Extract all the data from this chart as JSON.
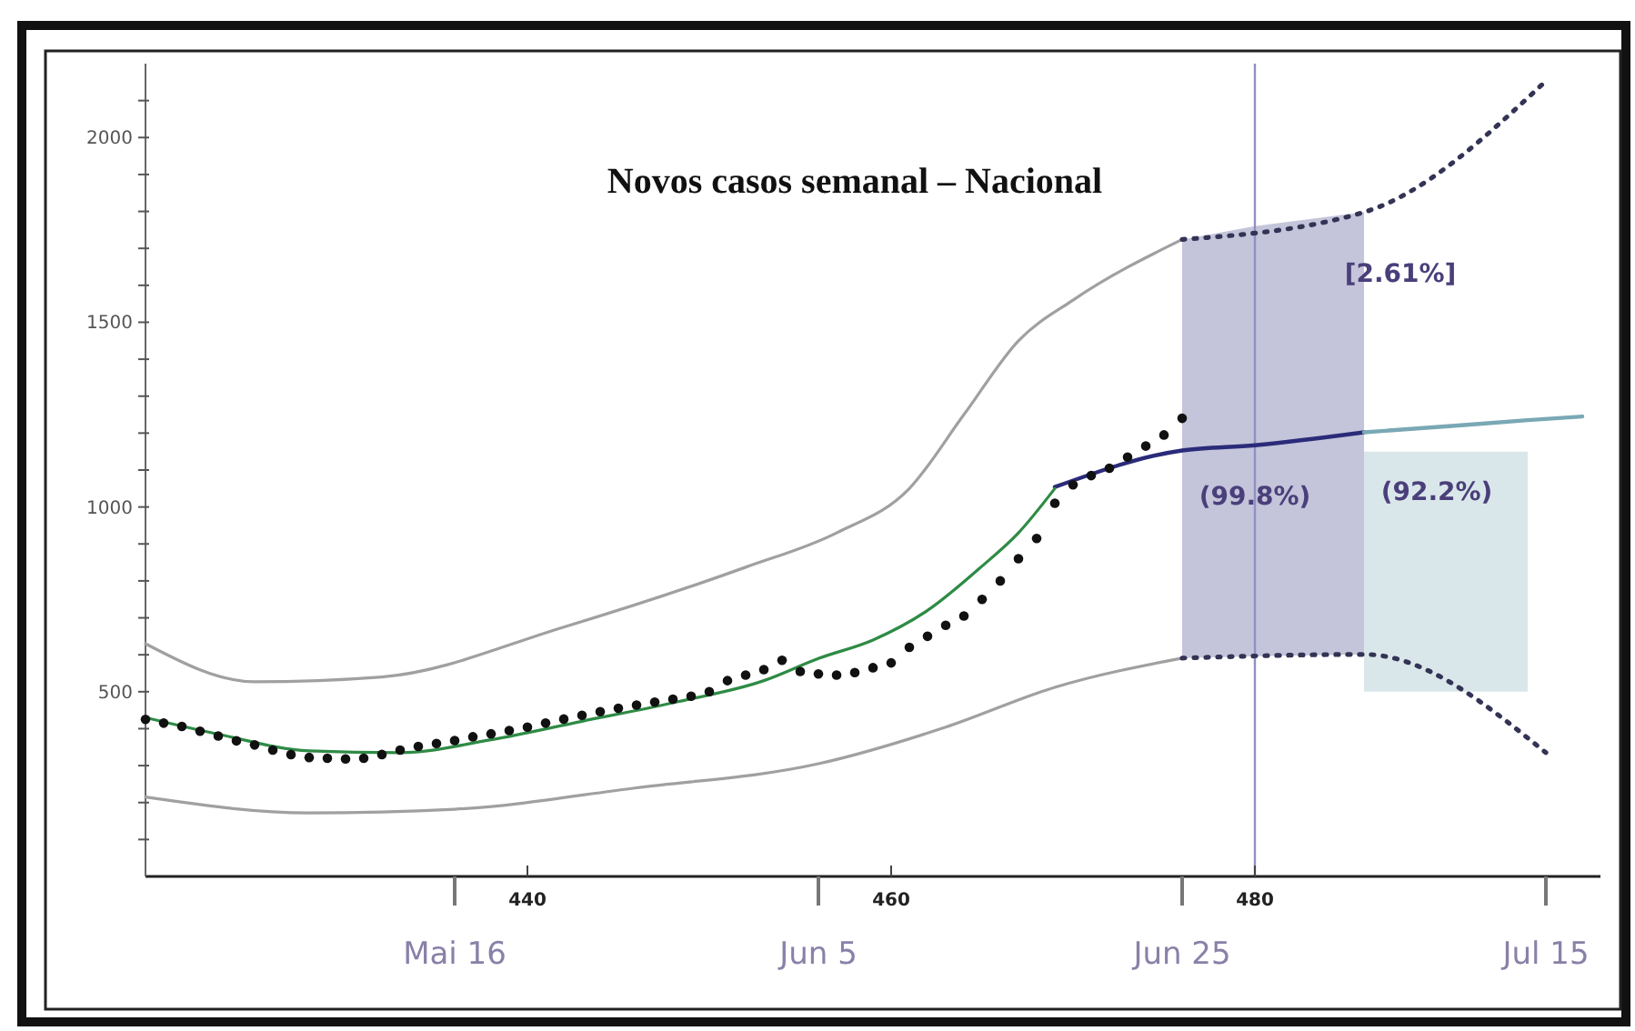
{
  "chart_data": {
    "type": "line",
    "title": "Novos casos semanal – Nacional",
    "xlim": [
      "--04-29",
      "--07-18"
    ],
    "xticks": [
      {
        "value": "--05-16",
        "label": "Mai 16"
      },
      {
        "value": "--06-05",
        "label": "Jun 5"
      },
      {
        "value": "--06-25",
        "label": "Jun 25"
      },
      {
        "value": "--07-15",
        "label": "Jul 15"
      }
    ],
    "x2lim": [
      419,
      499
    ],
    "x2ticks": [
      440,
      460,
      480
    ],
    "ylim": [
      0,
      2200
    ],
    "yticks": [
      {
        "value": 100,
        "label": null
      },
      {
        "value": 200,
        "label": null
      },
      {
        "value": 300,
        "label": null
      },
      {
        "value": 400,
        "label": null
      },
      500,
      {
        "value": 600,
        "label": null
      },
      {
        "value": 700,
        "label": null
      },
      {
        "value": 800,
        "label": null
      },
      {
        "value": 900,
        "label": null
      },
      1000,
      {
        "value": 1100,
        "label": null
      },
      {
        "value": 1200,
        "label": null
      },
      {
        "value": 1300,
        "label": null
      },
      {
        "value": 1400,
        "label": null
      },
      1500,
      {
        "value": 1600,
        "label": null
      },
      {
        "value": 1700,
        "label": null
      },
      {
        "value": 1800,
        "label": null
      },
      {
        "value": 1900,
        "label": null
      },
      2000,
      {
        "value": 2100,
        "label": null
      }
    ],
    "ref_lines": [
      {
        "axis": "x",
        "value": "--06-29",
        "color": "#9090c4"
      }
    ],
    "annotations": [
      "[2.61%]",
      {
        "text": "(99.8%)",
        "x": "--06-29",
        "y": 1030
      },
      "(92.2%)"
    ],
    "series": [
      {
        "color": "#a0a0a0",
        "x": [
          "--04-29",
          "--05-05",
          "--05-12",
          "--05-22",
          "--06-01",
          "--06-06",
          "--06-10",
          "--06-13",
          "--06-16",
          "--06-19",
          "--06-25"
        ],
        "values": [
          630,
          527,
          540,
          675,
          837,
          930,
          1050,
          1250,
          1450,
          1560,
          1724
        ]
      },
      {
        "color": "#a0a0a0",
        "x": [
          "--04-29",
          "--05-08",
          "--05-16",
          "--05-26",
          "--06-05",
          "--06-12",
          "--06-18",
          "--06-25"
        ],
        "values": [
          215,
          172,
          182,
          240,
          305,
          404,
          512,
          591
        ]
      },
      {
        "color": "#2b2b7a",
        "x": [
          "--06-18",
          "--06-25",
          "--06-29",
          "--07-05"
        ],
        "values": [
          1054,
          1153,
          1167,
          1202
        ],
        "lower": [
          null,
          591,
          596,
          601
        ],
        "upper": [
          null,
          1724,
          1760,
          1798
        ]
      },
      {
        "color": "#7aa8b5",
        "x": [
          "--07-05",
          "--07-10",
          "--07-14",
          "--07-17"
        ],
        "values": [
          1202,
          1220,
          1235,
          1245
        ],
        "lower": [
          500,
          500,
          500,
          null
        ],
        "upper": [
          1150,
          1150,
          1150,
          null
        ]
      },
      {
        "color": "#333355",
        "line_style": "dotted",
        "x": [
          "--06-25",
          "--07-05",
          "--07-15"
        ],
        "values": [
          1724,
          1798,
          2153
        ]
      },
      {
        "color": "#333355",
        "line_style": "dotted",
        "x": [
          "--06-25",
          "--07-05",
          "--07-15"
        ],
        "values": [
          591,
          601,
          335
        ]
      },
      {
        "color": "#2e8b45",
        "x": [
          "--04-29",
          "--05-03",
          "--05-08",
          "--05-13",
          "--05-18",
          "--05-23",
          "--05-28",
          "--06-02",
          "--06-05",
          "--06-08",
          "--06-11",
          "--06-14",
          "--06-16",
          "--06-18"
        ],
        "values": [
          430,
          385,
          340,
          335,
          370,
          420,
          470,
          530,
          590,
          640,
          720,
          840,
          930,
          1050
        ]
      },
      {
        "type": "scatter",
        "marker": "circle",
        "color": "#111111",
        "x": [
          "--04-29",
          "--04-30",
          "--05-01",
          "--05-02",
          "--05-03",
          "--05-04",
          "--05-05",
          "--05-06",
          "--05-07",
          "--05-08",
          "--05-09",
          "--05-10",
          "--05-11",
          "--05-12",
          "--05-13",
          "--05-14",
          "--05-15",
          "--05-16",
          "--05-17",
          "--05-18",
          "--05-19",
          "--05-20",
          "--05-21",
          "--05-22",
          "--05-23",
          "--05-24",
          "--05-25",
          "--05-26",
          "--05-27",
          "--05-28",
          "--05-29",
          "--05-30",
          "--05-31",
          "--06-01",
          "--06-02",
          "--06-03",
          "--06-04",
          "--06-05",
          "--06-06",
          "--06-07",
          "--06-08",
          "--06-09",
          "--06-10",
          "--06-11",
          "--06-12",
          "--06-13",
          "--06-14",
          "--06-15",
          "--06-16",
          "--06-17",
          "--06-18",
          "--06-19",
          "--06-20",
          "--06-21",
          "--06-22",
          "--06-23",
          "--06-24",
          "--06-25"
        ],
        "values": [
          425,
          415,
          406,
          393,
          380,
          367,
          356,
          342,
          330,
          322,
          320,
          318,
          320,
          330,
          342,
          352,
          360,
          368,
          378,
          386,
          395,
          404,
          415,
          426,
          436,
          446,
          455,
          464,
          472,
          480,
          488,
          500,
          530,
          545,
          560,
          585,
          555,
          548,
          545,
          552,
          565,
          578,
          620,
          650,
          680,
          705,
          750,
          800,
          860,
          915,
          1010,
          1060,
          1085,
          1105,
          1135,
          1165,
          1195,
          1240
        ]
      }
    ]
  }
}
